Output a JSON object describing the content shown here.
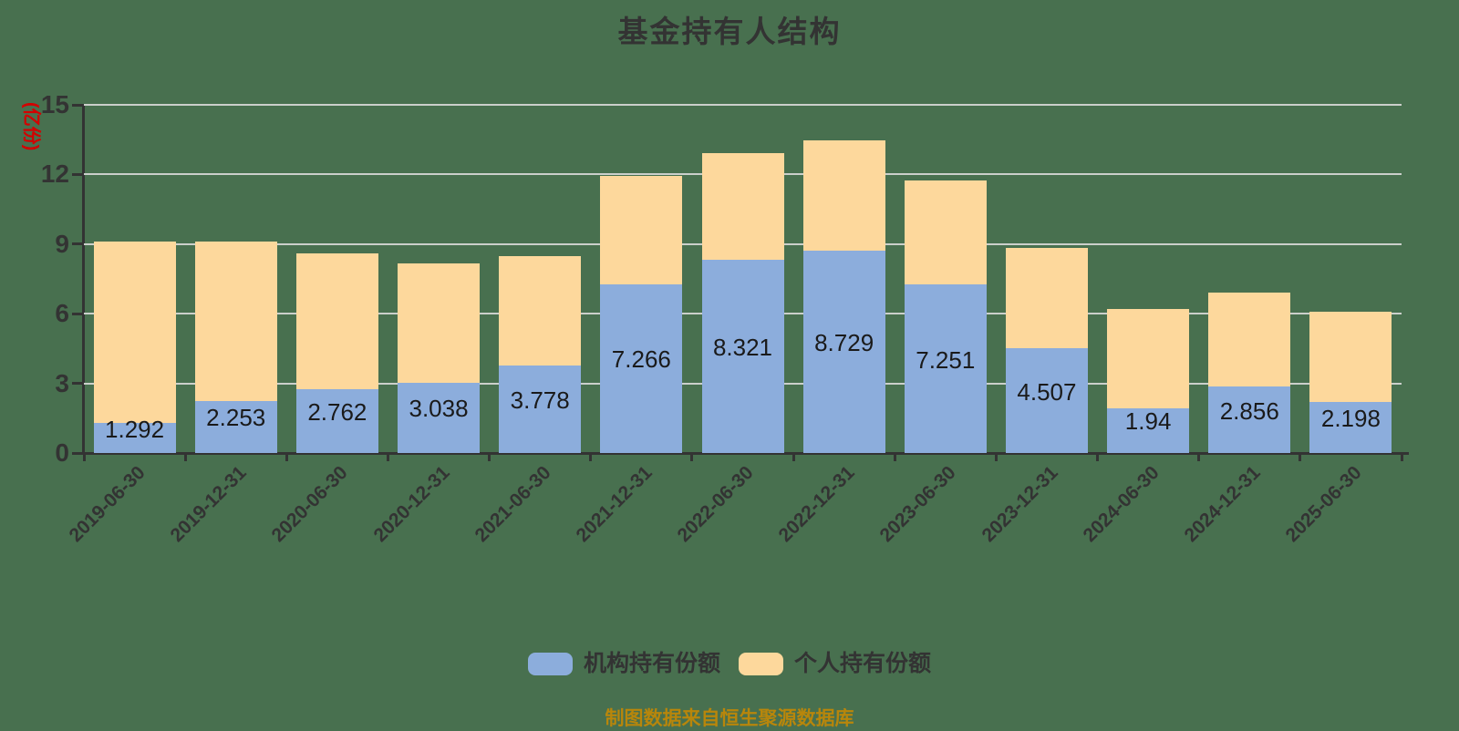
{
  "title": "基金持有人结构",
  "y_axis": {
    "unit_label": "(亿份)",
    "tick_labels": [
      "0",
      "3",
      "6",
      "9",
      "12",
      "15"
    ]
  },
  "legend": [
    {
      "label": "机构持有份额",
      "color": "#8CADDC"
    },
    {
      "label": "个人持有份额",
      "color": "#FDD89C"
    }
  ],
  "caption": "制图数据来自恒生聚源数据库",
  "colors": {
    "background": "#48704F",
    "gridline": "#CBCFCB",
    "axis": "#333333",
    "title_text": "#333333",
    "unit_text": "#D40000",
    "caption_text": "#B8860B",
    "bar_label_text": "#1a1a1a",
    "institutional_bar": "#8CADDC",
    "individual_bar": "#FDD89C"
  },
  "chart_data": {
    "type": "bar",
    "stacked": true,
    "title": "基金持有人结构",
    "ylabel": "(亿份)",
    "xlabel": "",
    "ylim": [
      0,
      15
    ],
    "yticks": [
      0,
      3,
      6,
      9,
      12,
      15
    ],
    "grid": true,
    "legend_position": "bottom",
    "categories": [
      "2019-06-30",
      "2019-12-31",
      "2020-06-30",
      "2020-12-31",
      "2021-06-30",
      "2021-12-31",
      "2022-06-30",
      "2022-12-31",
      "2023-06-30",
      "2023-12-31",
      "2024-06-30",
      "2024-12-31",
      "2025-06-30"
    ],
    "series": [
      {
        "name": "机构持有份额",
        "color": "#8CADDC",
        "values": [
          1.292,
          2.253,
          2.762,
          3.038,
          3.778,
          7.266,
          8.321,
          8.729,
          7.251,
          4.507,
          1.94,
          2.856,
          2.198
        ],
        "data_labels": [
          "1.292",
          "2.253",
          "2.762",
          "3.038",
          "3.778",
          "7.266",
          "8.321",
          "8.729",
          "7.251",
          "4.507",
          "1.94",
          "2.856",
          "2.198"
        ]
      },
      {
        "name": "个人持有份额",
        "color": "#FDD89C",
        "values_estimated": true,
        "values": [
          7.83,
          6.84,
          5.83,
          5.12,
          4.72,
          4.66,
          4.6,
          4.74,
          4.49,
          4.32,
          4.25,
          4.05,
          3.88
        ]
      }
    ]
  }
}
